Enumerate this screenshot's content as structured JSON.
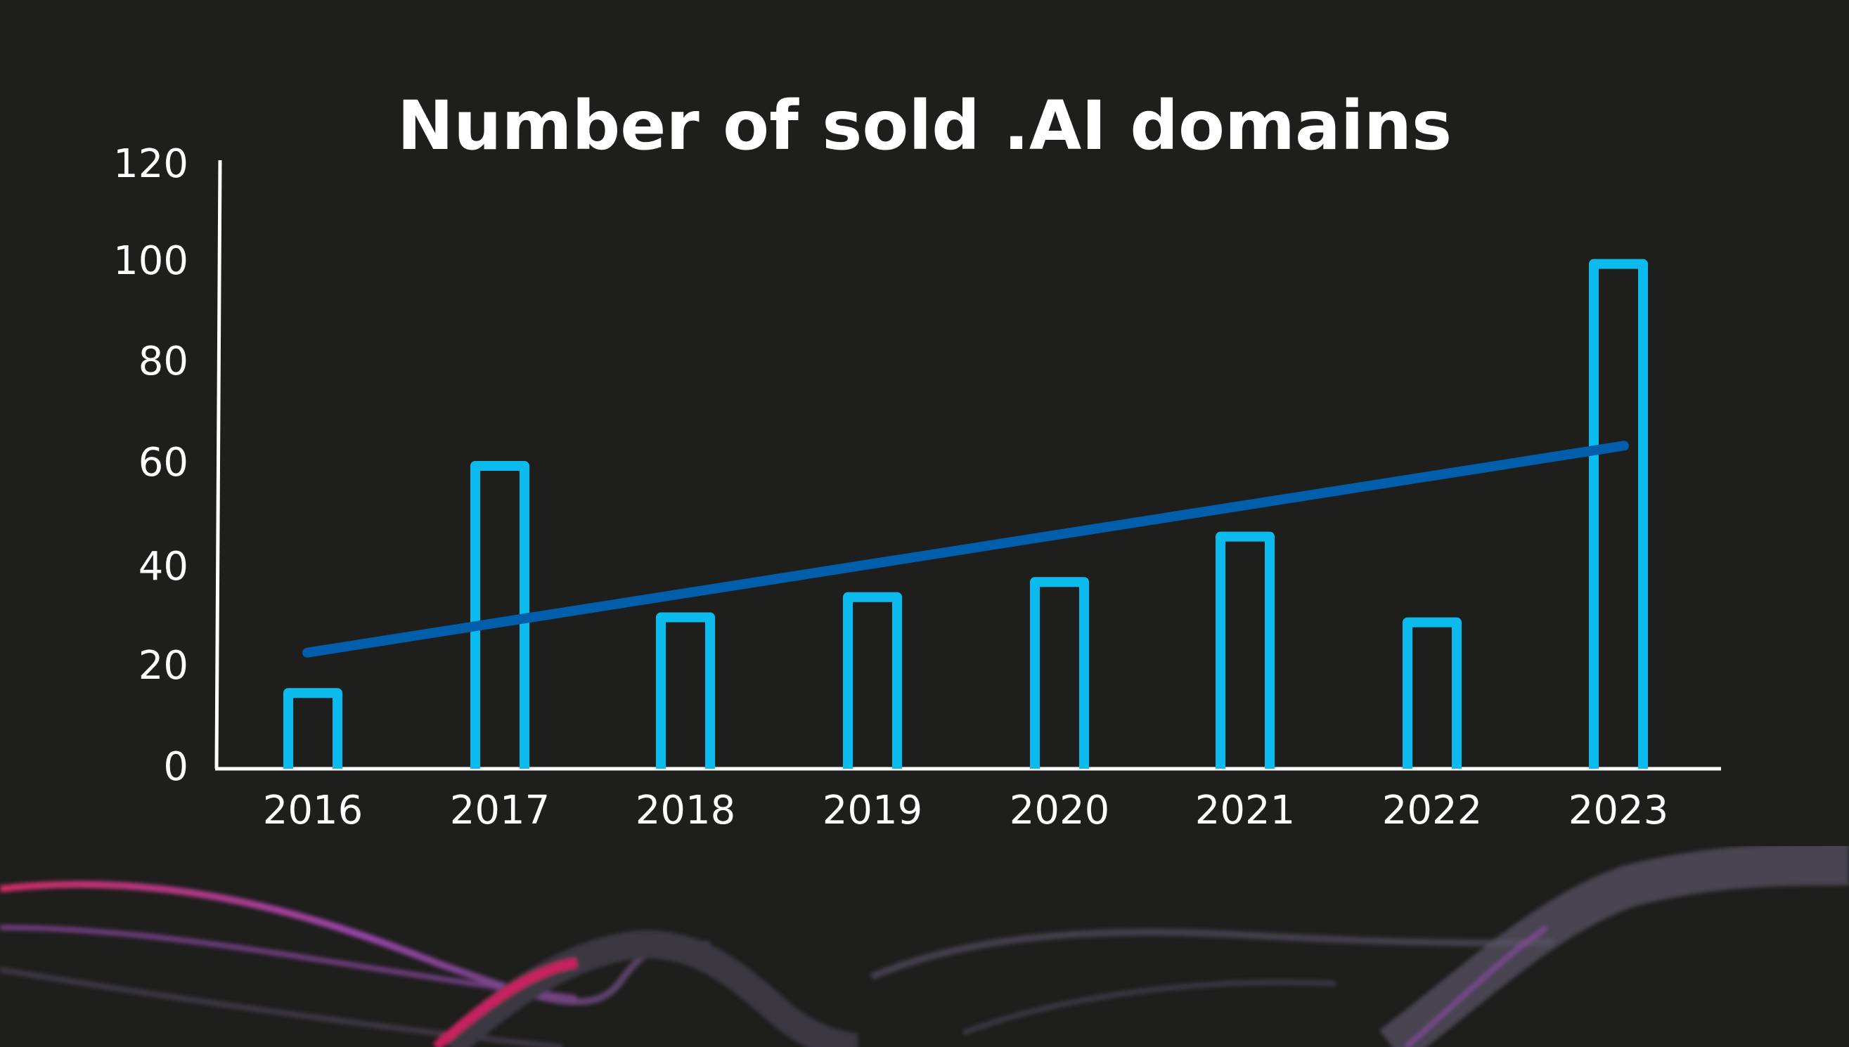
{
  "chart_data": {
    "type": "bar",
    "title": "Number of sold .AI domains",
    "xlabel": "",
    "ylabel": "",
    "categories": [
      "2016",
      "2017",
      "2018",
      "2019",
      "2020",
      "2021",
      "2022",
      "2023"
    ],
    "values": [
      15,
      60,
      30,
      34,
      37,
      46,
      29,
      100
    ],
    "ylim": [
      0,
      120
    ],
    "yticks": [
      0,
      20,
      40,
      60,
      80,
      100,
      120
    ],
    "grid": false,
    "legend": null,
    "series": [
      {
        "name": "Sold .AI domains",
        "type": "bar",
        "style": "outlined",
        "values": [
          15,
          60,
          30,
          34,
          37,
          46,
          29,
          100
        ]
      },
      {
        "name": "Trend",
        "type": "line",
        "style": "linear-trendline",
        "start": 23,
        "end": 64
      }
    ]
  },
  "colors": {
    "background": "#1e1e1d",
    "bar_stroke": "#0bbbed",
    "trendline": "#005eab",
    "axis": "#ffffff",
    "text": "#ffffff"
  }
}
